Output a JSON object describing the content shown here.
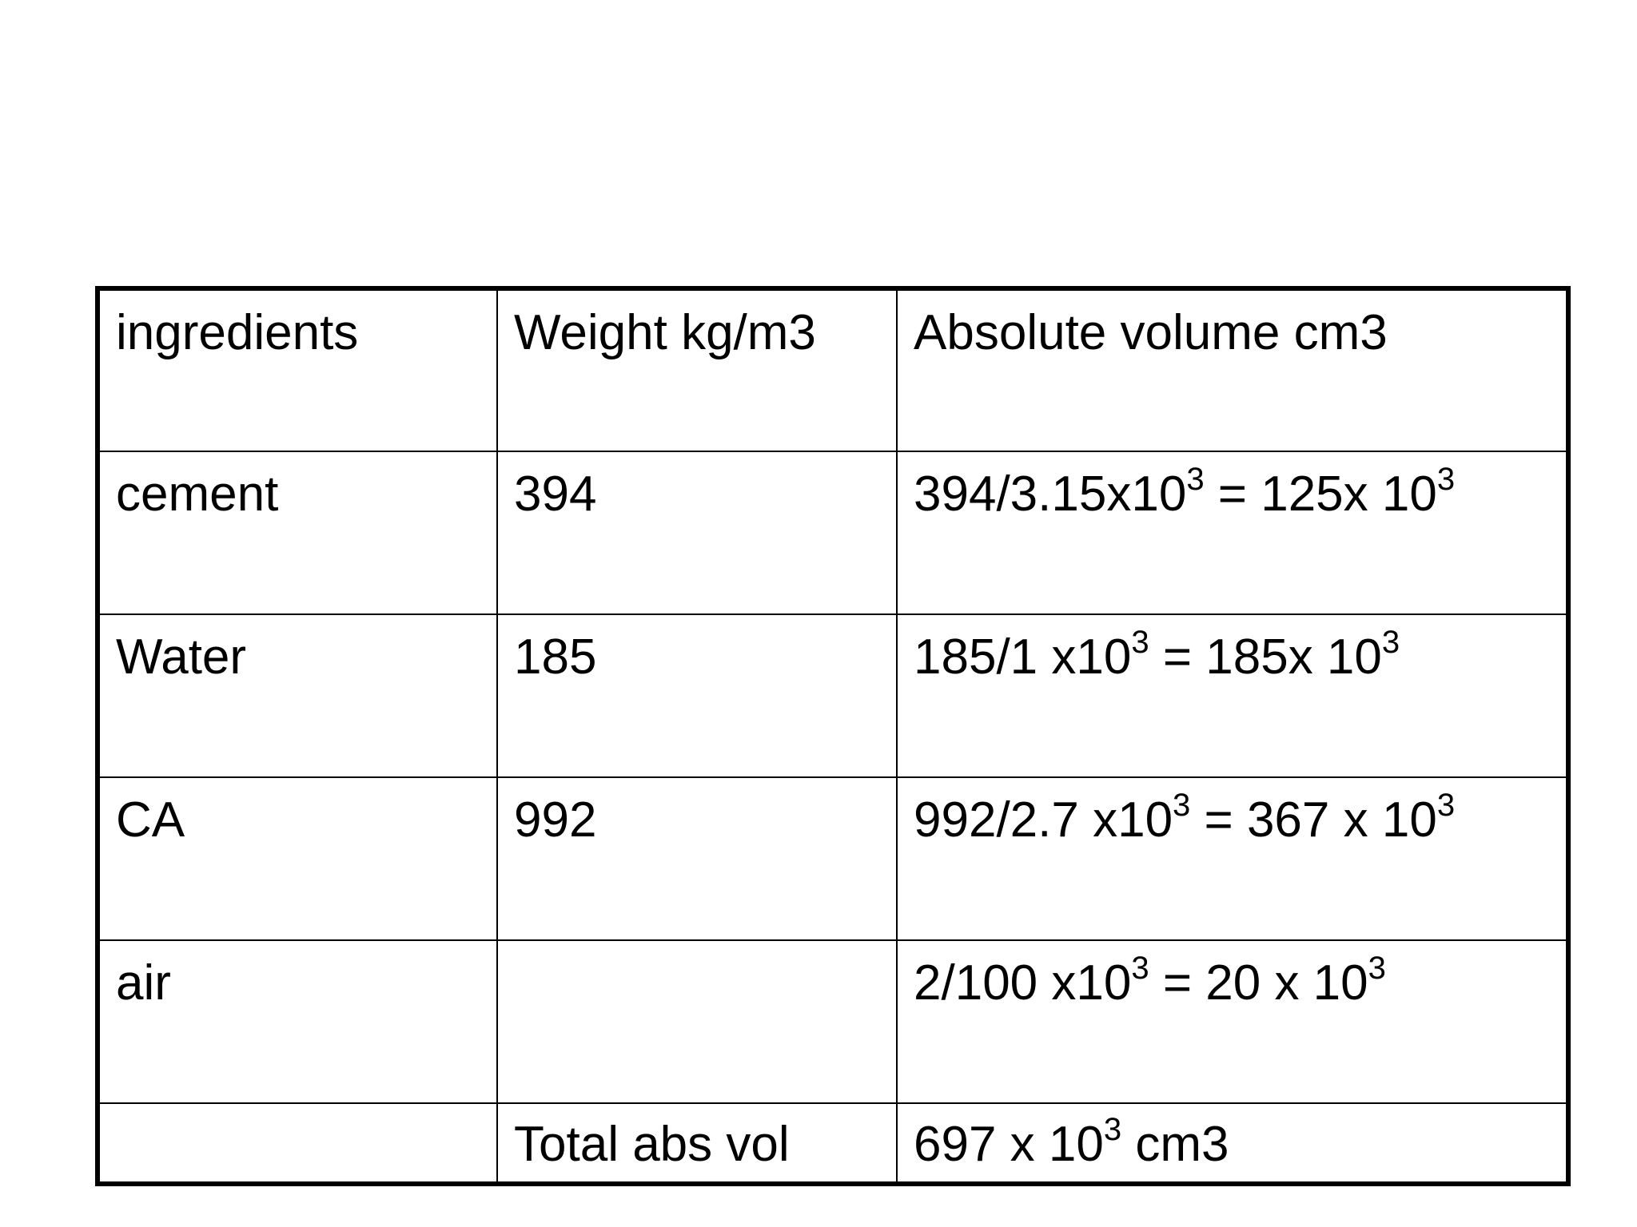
{
  "table": {
    "header": {
      "col1": "ingredients",
      "col2": "Weight kg/m3",
      "col3": "Absolute volume cm3"
    },
    "rows": [
      {
        "ingredient": "cement",
        "weight": "394",
        "vol_a": "394/3.15x10",
        "vol_a_exp": "3",
        "vol_b": " = 125x 10",
        "vol_b_exp": "3"
      },
      {
        "ingredient": "Water",
        "weight": "185",
        "vol_a": "185/1 x10",
        "vol_a_exp": "3",
        "vol_b": " = 185x 10",
        "vol_b_exp": "3"
      },
      {
        "ingredient": "CA",
        "weight": "992",
        "vol_a": "992/2.7 x10",
        "vol_a_exp": "3",
        "vol_b": " = 367 x 10",
        "vol_b_exp": "3"
      },
      {
        "ingredient": "air",
        "weight": "",
        "vol_a": "2/100 x10",
        "vol_a_exp": "3",
        "vol_b": " = 20 x 10",
        "vol_b_exp": "3"
      }
    ],
    "total": {
      "ingredient": "",
      "label": "Total abs vol",
      "value": "697 x 10",
      "value_exp": "3",
      "unit": " cm3"
    }
  }
}
